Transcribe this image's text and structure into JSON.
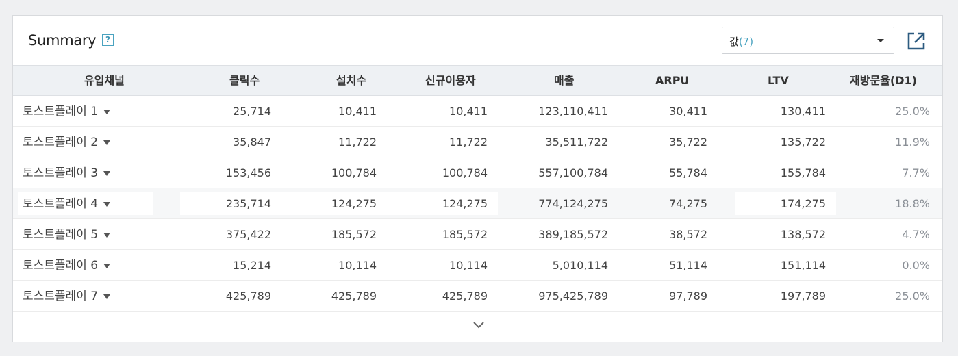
{
  "header": {
    "title": "Summary",
    "help_label": "?",
    "select_value": "값",
    "select_count": "(7)"
  },
  "table": {
    "columns": [
      "유입채널",
      "클릭수",
      "설치수",
      "신규이용자",
      "매출",
      "ARPU",
      "LTV",
      "재방문율(D1)"
    ],
    "rows": [
      {
        "name": "토스트플레이 1",
        "clicks": "25,714",
        "installs": "10,411",
        "new_users": "10,411",
        "revenue": "123,110,411",
        "arpu": "30,411",
        "ltv": "130,411",
        "retention": "25.0%"
      },
      {
        "name": "토스트플레이 2",
        "clicks": "35,847",
        "installs": "11,722",
        "new_users": "11,722",
        "revenue": "35,511,722",
        "arpu": "35,722",
        "ltv": "135,722",
        "retention": "11.9%"
      },
      {
        "name": "토스트플레이 3",
        "clicks": "153,456",
        "installs": "100,784",
        "new_users": "100,784",
        "revenue": "557,100,784",
        "arpu": "55,784",
        "ltv": "155,784",
        "retention": "7.7%"
      },
      {
        "name": "토스트플레이 4",
        "clicks": "235,714",
        "installs": "124,275",
        "new_users": "124,275",
        "revenue": "774,124,275",
        "arpu": "74,275",
        "ltv": "174,275",
        "retention": "18.8%"
      },
      {
        "name": "토스트플레이 5",
        "clicks": "375,422",
        "installs": "185,572",
        "new_users": "185,572",
        "revenue": "389,185,572",
        "arpu": "38,572",
        "ltv": "138,572",
        "retention": "4.7%"
      },
      {
        "name": "토스트플레이 6",
        "clicks": "15,214",
        "installs": "10,114",
        "new_users": "10,114",
        "revenue": "5,010,114",
        "arpu": "51,114",
        "ltv": "151,114",
        "retention": "0.0%"
      },
      {
        "name": "토스트플레이 7",
        "clicks": "425,789",
        "installs": "425,789",
        "new_users": "425,789",
        "revenue": "975,425,789",
        "arpu": "97,789",
        "ltv": "197,789",
        "retention": "25.0%"
      }
    ]
  },
  "colors": {
    "accent": "#4aa3c0",
    "header_bg": "#eef1f4"
  },
  "icons": {
    "help": "help-icon",
    "export": "external-link-icon",
    "expand": "chevron-down-icon"
  }
}
